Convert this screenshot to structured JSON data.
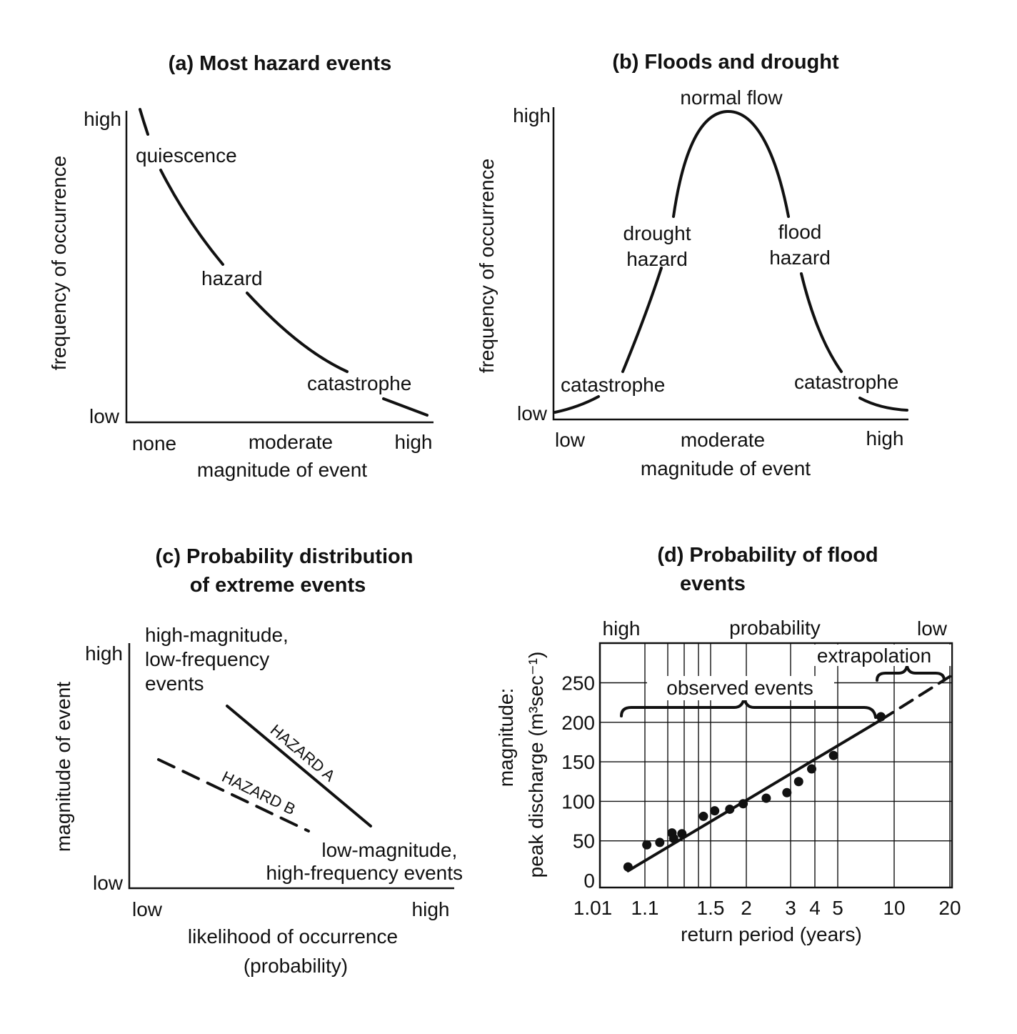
{
  "chart_data": [
    {
      "id": "a",
      "type": "line",
      "title": "(a) Most hazard events",
      "xlabel": "magnitude of event",
      "ylabel": "frequency of occurrence",
      "x_ticks": [
        "none",
        "moderate",
        "high"
      ],
      "y_ticks": [
        "low",
        "high"
      ],
      "curve_labels": [
        "quiescence",
        "hazard",
        "catastrophe"
      ],
      "x": [
        0.0,
        0.08,
        0.2,
        0.35,
        0.5,
        0.65,
        0.8,
        1.0
      ],
      "y": [
        1.0,
        0.82,
        0.62,
        0.45,
        0.32,
        0.21,
        0.12,
        0.0
      ]
    },
    {
      "id": "b",
      "type": "line",
      "title": "(b) Floods and drought",
      "xlabel": "magnitude of event",
      "ylabel": "frequency of occurrence",
      "x_ticks": [
        "low",
        "moderate",
        "high"
      ],
      "y_ticks": [
        "low",
        "high"
      ],
      "curve_labels": [
        "normal flow",
        "drought hazard",
        "flood hazard",
        "catastrophe",
        "catastrophe"
      ],
      "x": [
        0.0,
        0.1,
        0.2,
        0.3,
        0.4,
        0.5,
        0.6,
        0.7,
        0.8,
        0.9,
        1.0
      ],
      "y": [
        0.0,
        0.04,
        0.22,
        0.62,
        0.97,
        1.0,
        0.95,
        0.6,
        0.2,
        0.04,
        0.01
      ]
    },
    {
      "id": "c",
      "type": "line",
      "title": [
        "(c) Probability distribution",
        "of extreme events"
      ],
      "xlabel": [
        "likelihood of occurrence",
        "(probability)"
      ],
      "ylabel": "magnitude of event",
      "x_ticks": [
        "low",
        "high"
      ],
      "y_ticks": [
        "low",
        "high"
      ],
      "annotations": [
        [
          "high-magnitude,",
          "low-frequency",
          "events"
        ],
        [
          "low-magnitude,",
          "high-frequency events"
        ]
      ],
      "series": [
        {
          "name": "HAZARD A",
          "style": "solid",
          "x": [
            0.3,
            0.74
          ],
          "y": [
            0.72,
            0.23
          ]
        },
        {
          "name": "HAZARD B",
          "style": "dashed",
          "x": [
            0.09,
            0.55
          ],
          "y": [
            0.53,
            0.26
          ]
        }
      ]
    },
    {
      "id": "d",
      "type": "scatter",
      "title": [
        "(d) Probability of flood",
        "events"
      ],
      "xlabel": "return period (years)",
      "ylabel": [
        "magnitude:",
        "peak discharge (m³sec⁻¹)"
      ],
      "top_labels": [
        "high",
        "probability",
        "low"
      ],
      "annotations": [
        "observed events",
        "extrapolation"
      ],
      "x_tick_labels": [
        "1.01",
        "1.1",
        "1.5",
        "2",
        "3",
        "4",
        "5",
        "10",
        "20"
      ],
      "y_ticks": [
        0,
        50,
        100,
        150,
        200,
        250
      ],
      "ylim": [
        0,
        280
      ],
      "points": [
        {
          "x": 1.07,
          "y": 17
        },
        {
          "x": 1.11,
          "y": 45
        },
        {
          "x": 1.18,
          "y": 48
        },
        {
          "x": 1.25,
          "y": 60
        },
        {
          "x": 1.26,
          "y": 53
        },
        {
          "x": 1.31,
          "y": 59
        },
        {
          "x": 1.45,
          "y": 81
        },
        {
          "x": 1.55,
          "y": 88
        },
        {
          "x": 1.75,
          "y": 90
        },
        {
          "x": 1.95,
          "y": 97
        },
        {
          "x": 2.4,
          "y": 104
        },
        {
          "x": 2.9,
          "y": 111
        },
        {
          "x": 3.3,
          "y": 125
        },
        {
          "x": 3.85,
          "y": 141
        },
        {
          "x": 4.8,
          "y": 158
        },
        {
          "x": 8.5,
          "y": 207
        }
      ],
      "fit_line": {
        "x": [
          1.07,
          8.5
        ],
        "y": [
          12,
          203
        ]
      },
      "extrapolation_line": {
        "x": [
          8.5,
          20
        ],
        "y": [
          203,
          258
        ]
      }
    }
  ]
}
